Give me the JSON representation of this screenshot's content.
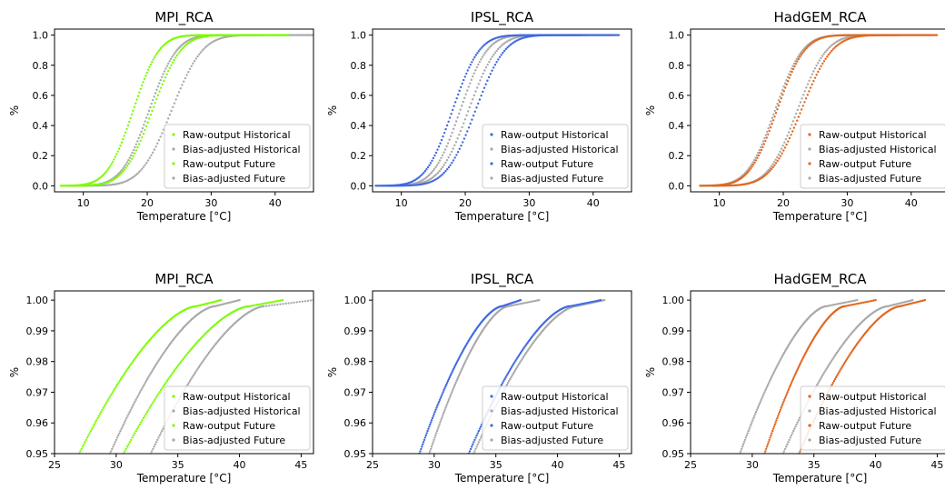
{
  "figure": {
    "legend_labels": [
      "Raw-output Historical",
      "Bias-adjusted Historical",
      "Raw-output Future",
      "Bias-adjusted Future"
    ],
    "xlabel": "Temperature [°C]",
    "ylabel": "%"
  },
  "chart_data": [
    {
      "type": "scatter",
      "title": "MPI_RCA",
      "color": "#7cfc00",
      "gray": "#a9a9a9",
      "xlim": [
        5.5,
        46
      ],
      "ylim": [
        -0.04,
        1.04
      ],
      "xticks": [
        10,
        20,
        30,
        40
      ],
      "yticks": [
        0.0,
        0.2,
        0.4,
        0.6,
        0.8,
        1.0
      ],
      "ytick_labels": [
        "0.0",
        "0.2",
        "0.4",
        "0.6",
        "0.8",
        "1.0"
      ],
      "legend": "lower-right",
      "series": [
        {
          "name": "Raw-output Historical",
          "kind": "raw",
          "mu": 17.8,
          "s": 3.2,
          "x_start": 6.5,
          "x_end": 36
        },
        {
          "name": "Bias-adjusted Historical",
          "kind": "adj",
          "mu": 20.3,
          "s": 3.4,
          "x_start": 8,
          "x_end": 38
        },
        {
          "name": "Raw-output Future",
          "kind": "raw",
          "mu": 20.8,
          "s": 3.5,
          "x_start": 8,
          "x_end": 42
        },
        {
          "name": "Bias-adjusted Future",
          "kind": "adj",
          "mu": 23.8,
          "s": 3.8,
          "x_start": 10,
          "x_end": 46
        }
      ]
    },
    {
      "type": "scatter",
      "title": "IPSL_RCA",
      "color": "#4169e1",
      "gray": "#a9a9a9",
      "xlim": [
        5.5,
        46
      ],
      "ylim": [
        -0.04,
        1.04
      ],
      "xticks": [
        10,
        20,
        30,
        40
      ],
      "yticks": [
        0.0,
        0.2,
        0.4,
        0.6,
        0.8,
        1.0
      ],
      "ytick_labels": [
        "0.0",
        "0.2",
        "0.4",
        "0.6",
        "0.8",
        "1.0"
      ],
      "legend": "lower-right",
      "series": [
        {
          "name": "Raw-output Historical",
          "kind": "raw",
          "mu": 18.0,
          "s": 3.3,
          "x_start": 6,
          "x_end": 38
        },
        {
          "name": "Bias-adjusted Historical",
          "kind": "adj",
          "mu": 19.2,
          "s": 3.3,
          "x_start": 7,
          "x_end": 39
        },
        {
          "name": "Raw-output Future",
          "kind": "raw",
          "mu": 21.6,
          "s": 3.6,
          "x_start": 8,
          "x_end": 44
        },
        {
          "name": "Bias-adjusted Future",
          "kind": "adj",
          "mu": 20.5,
          "s": 3.5,
          "x_start": 8,
          "x_end": 43
        }
      ]
    },
    {
      "type": "scatter",
      "title": "HadGEM_RCA",
      "color": "#e2671f",
      "gray": "#a9a9a9",
      "xlim": [
        5.5,
        46
      ],
      "ylim": [
        -0.04,
        1.04
      ],
      "xticks": [
        10,
        20,
        30,
        40
      ],
      "yticks": [
        0.0,
        0.2,
        0.4,
        0.6,
        0.8,
        1.0
      ],
      "ytick_labels": [
        "0.0",
        "0.2",
        "0.4",
        "0.6",
        "0.8",
        "1.0"
      ],
      "legend": "lower-right",
      "series": [
        {
          "name": "Raw-output Historical",
          "kind": "raw",
          "mu": 19.0,
          "s": 3.4,
          "x_start": 7,
          "x_end": 38
        },
        {
          "name": "Bias-adjusted Historical",
          "kind": "adj",
          "mu": 18.7,
          "s": 3.4,
          "x_start": 7,
          "x_end": 37
        },
        {
          "name": "Raw-output Future",
          "kind": "raw",
          "mu": 22.8,
          "s": 3.8,
          "x_start": 9,
          "x_end": 44
        },
        {
          "name": "Bias-adjusted Future",
          "kind": "adj",
          "mu": 22.2,
          "s": 3.6,
          "x_start": 9,
          "x_end": 43
        }
      ]
    },
    {
      "type": "scatter",
      "title": "MPI_RCA",
      "color": "#7cfc00",
      "gray": "#a9a9a9",
      "xlim": [
        25,
        46
      ],
      "ylim": [
        0.95,
        1.003
      ],
      "xticks": [
        25,
        30,
        35,
        40,
        45
      ],
      "yticks": [
        0.95,
        0.96,
        0.97,
        0.98,
        0.99,
        1.0
      ],
      "ytick_labels": [
        "0.95",
        "0.96",
        "0.97",
        "0.98",
        "0.99",
        "1.00"
      ],
      "legend": "lower-right",
      "series": [
        {
          "name": "Raw-output Historical",
          "kind": "raw",
          "x_start": 27.0,
          "x_mid": 31.0,
          "x_end": 36.5,
          "x_max": 38.5
        },
        {
          "name": "Bias-adjusted Historical",
          "kind": "adj",
          "x_start": 29.5,
          "x_mid": 33.2,
          "x_end": 38.0,
          "x_max": 40.0
        },
        {
          "name": "Raw-output Future",
          "kind": "raw",
          "x_start": 30.6,
          "x_mid": 35.0,
          "x_end": 40.8,
          "x_max": 43.5
        },
        {
          "name": "Bias-adjusted Future",
          "kind": "adj",
          "x_start": 32.8,
          "x_mid": 37.2,
          "x_end": 42.0,
          "x_max": 46.0
        }
      ]
    },
    {
      "type": "scatter",
      "title": "IPSL_RCA",
      "color": "#4169e1",
      "gray": "#a9a9a9",
      "xlim": [
        25,
        46
      ],
      "ylim": [
        0.95,
        1.003
      ],
      "xticks": [
        25,
        30,
        35,
        40,
        45
      ],
      "yticks": [
        0.95,
        0.96,
        0.97,
        0.98,
        0.99,
        1.0
      ],
      "ytick_labels": [
        "0.95",
        "0.96",
        "0.97",
        "0.98",
        "0.99",
        "1.00"
      ],
      "legend": "lower-right",
      "series": [
        {
          "name": "Raw-output Historical",
          "kind": "raw",
          "x_start": 28.8,
          "x_mid": 31.5,
          "x_end": 35.5,
          "x_max": 37.0
        },
        {
          "name": "Bias-adjusted Historical",
          "kind": "adj",
          "x_start": 29.6,
          "x_mid": 32.2,
          "x_end": 36.0,
          "x_max": 38.5
        },
        {
          "name": "Raw-output Future",
          "kind": "raw",
          "x_start": 32.8,
          "x_mid": 35.8,
          "x_end": 41.0,
          "x_max": 43.5
        },
        {
          "name": "Bias-adjusted Future",
          "kind": "adj",
          "x_start": 33.2,
          "x_mid": 36.2,
          "x_end": 41.5,
          "x_max": 43.8
        }
      ]
    },
    {
      "type": "scatter",
      "title": "HadGEM_RCA",
      "color": "#e2671f",
      "gray": "#a9a9a9",
      "xlim": [
        25,
        46
      ],
      "ylim": [
        0.95,
        1.003
      ],
      "xticks": [
        25,
        30,
        35,
        40,
        45
      ],
      "yticks": [
        0.95,
        0.96,
        0.97,
        0.98,
        0.99,
        1.0
      ],
      "ytick_labels": [
        "0.95",
        "0.96",
        "0.97",
        "0.98",
        "0.99",
        "1.00"
      ],
      "legend": "lower-right",
      "series": [
        {
          "name": "Raw-output Historical",
          "kind": "raw",
          "x_start": 31.0,
          "x_mid": 33.8,
          "x_end": 37.5,
          "x_max": 40.0
        },
        {
          "name": "Bias-adjusted Historical",
          "kind": "adj",
          "x_start": 29.0,
          "x_mid": 31.8,
          "x_end": 36.0,
          "x_max": 38.5
        },
        {
          "name": "Raw-output Future",
          "kind": "raw",
          "x_start": 33.8,
          "x_mid": 37.0,
          "x_end": 42.0,
          "x_max": 44.0
        },
        {
          "name": "Bias-adjusted Future",
          "kind": "adj",
          "x_start": 32.5,
          "x_mid": 35.8,
          "x_end": 41.0,
          "x_max": 43.0
        }
      ]
    }
  ]
}
